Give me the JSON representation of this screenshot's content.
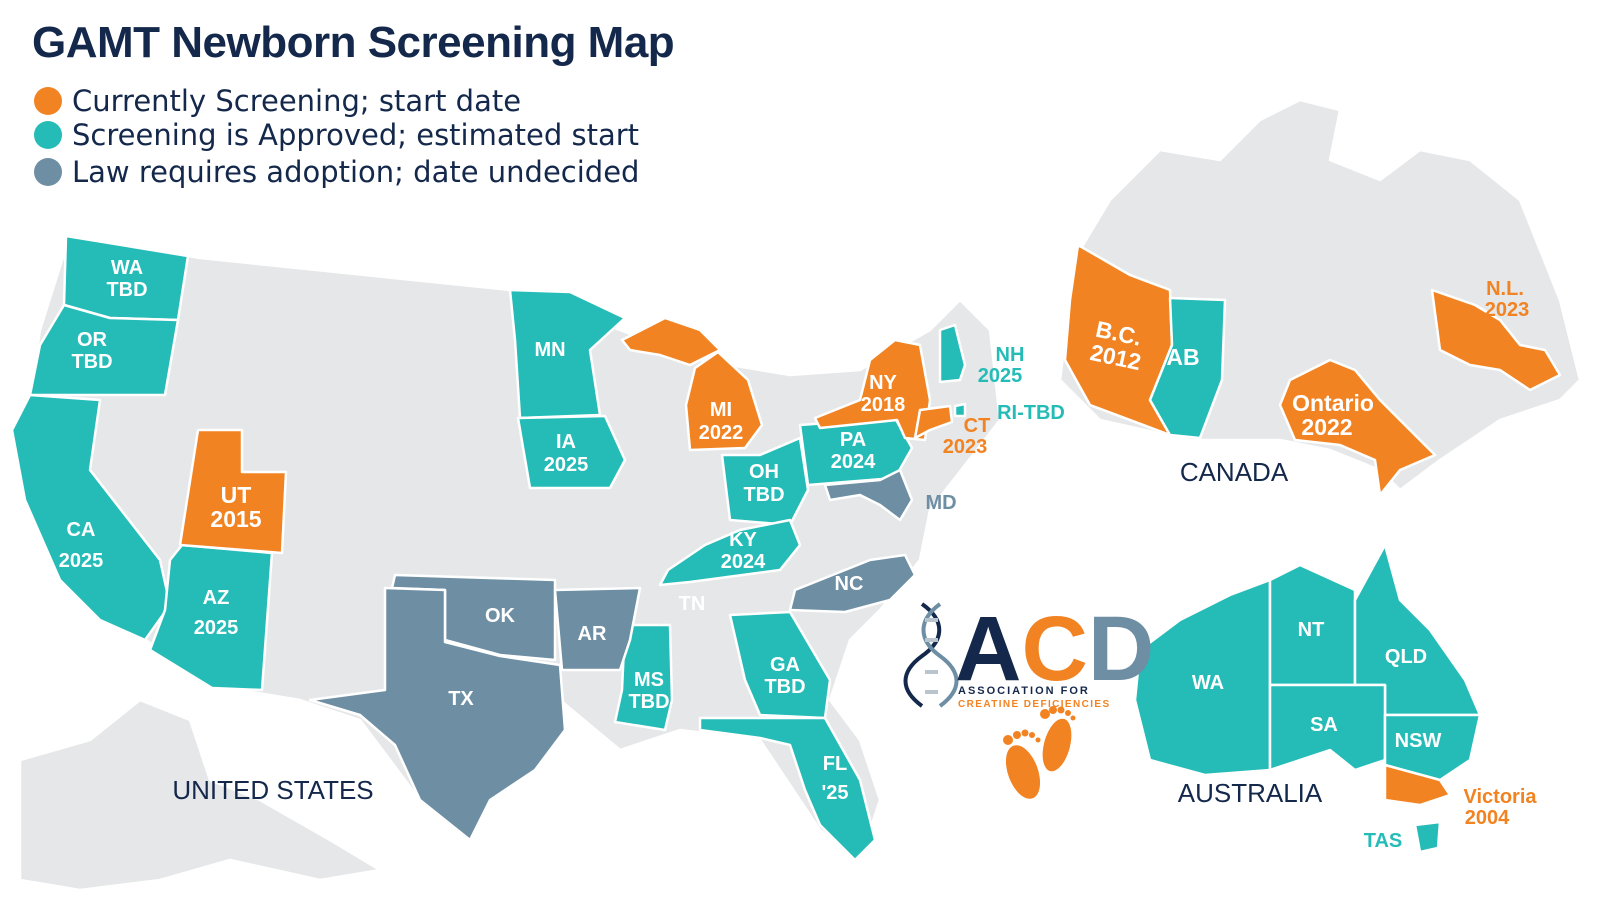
{
  "title": "GAMT Newborn Screening Map",
  "colors": {
    "screening": "#f28322",
    "approved": "#25bcb8",
    "law": "#6d8ea3",
    "other": "#e5e7e9",
    "title": "#14284b"
  },
  "legend": [
    {
      "label": "Currently Screening; start date",
      "color": "#f28322"
    },
    {
      "label": "Screening is Approved; estimated start",
      "color": "#25bcb8"
    },
    {
      "label": "Law requires adoption; date undecided",
      "color": "#6d8ea3"
    }
  ],
  "countries": {
    "us": "UNITED STATES",
    "canada": "CANADA",
    "australia": "AUSTRALIA"
  },
  "regions": {
    "wa_us": {
      "l1": "WA",
      "l2": "TBD",
      "status": "approved"
    },
    "or": {
      "l1": "OR",
      "l2": "TBD",
      "status": "approved"
    },
    "ca": {
      "l1": "CA",
      "l2": "2025",
      "status": "approved"
    },
    "ut": {
      "l1": "UT",
      "l2": "2015",
      "status": "screening"
    },
    "az": {
      "l1": "AZ",
      "l2": "2025",
      "status": "approved"
    },
    "mn": {
      "l1": "MN",
      "status": "approved"
    },
    "ia": {
      "l1": "IA",
      "l2": "2025",
      "status": "approved"
    },
    "mi": {
      "l1": "MI",
      "l2": "2022",
      "status": "screening"
    },
    "oh": {
      "l1": "OH",
      "l2": "TBD",
      "status": "approved"
    },
    "ky": {
      "l1": "KY",
      "l2": "2024",
      "status": "approved"
    },
    "pa": {
      "l1": "PA",
      "l2": "2024",
      "status": "approved"
    },
    "ny": {
      "l1": "NY",
      "l2": "2018",
      "status": "screening"
    },
    "nh": {
      "l1": "NH",
      "l2": "2025",
      "status": "approved"
    },
    "ri": {
      "l1": "RI-TBD",
      "status": "approved"
    },
    "ct": {
      "l1": "CT",
      "l2": "2023",
      "status": "screening"
    },
    "md": {
      "l1": "MD",
      "status": "law"
    },
    "nc": {
      "l1": "NC",
      "status": "law"
    },
    "tn": {
      "l1": "TN",
      "status": "other"
    },
    "ok": {
      "l1": "OK",
      "status": "law"
    },
    "ar": {
      "l1": "AR",
      "status": "law"
    },
    "tx": {
      "l1": "TX",
      "status": "law"
    },
    "ms": {
      "l1": "MS",
      "l2": "TBD",
      "status": "approved"
    },
    "ga": {
      "l1": "GA",
      "l2": "TBD",
      "status": "approved"
    },
    "fl": {
      "l1": "FL",
      "l2": "'25",
      "status": "approved"
    },
    "bc": {
      "l1": "B.C.",
      "l2": "2012",
      "status": "screening"
    },
    "ab": {
      "l1": "AB",
      "status": "approved"
    },
    "on": {
      "l1": "Ontario",
      "l2": "2022",
      "status": "screening"
    },
    "nl": {
      "l1": "N.L.",
      "l2": "2023",
      "status": "screening"
    },
    "wa_au": {
      "l1": "WA",
      "status": "approved"
    },
    "nt": {
      "l1": "NT",
      "status": "approved"
    },
    "qld": {
      "l1": "QLD",
      "status": "approved"
    },
    "sa": {
      "l1": "SA",
      "status": "approved"
    },
    "nsw": {
      "l1": "NSW",
      "status": "approved"
    },
    "vic": {
      "l1": "Victoria",
      "l2": "2004",
      "status": "screening"
    },
    "tas": {
      "l1": "TAS",
      "status": "approved"
    }
  },
  "logo": {
    "letters": "ACD",
    "line1": "ASSOCIATION FOR",
    "line2": "CREATINE DEFICIENCIES"
  }
}
